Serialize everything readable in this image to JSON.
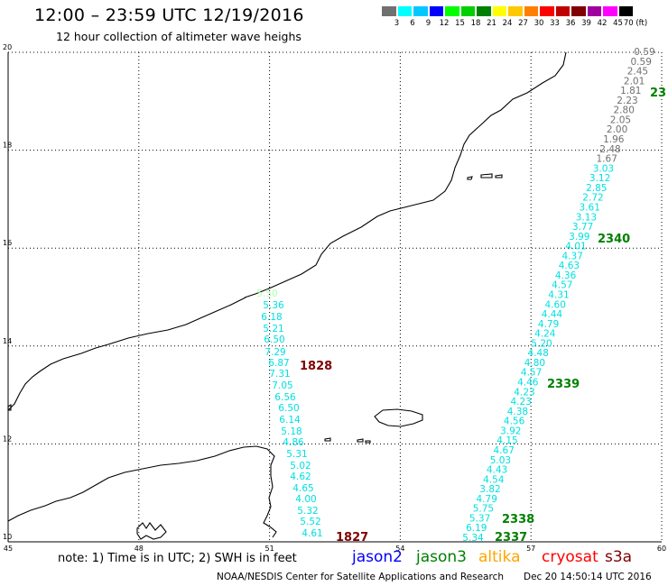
{
  "header": {
    "title": "12:00 – 23:59 UTC 12/19/2016",
    "subtitle": "12 hour collection of altimeter wave heighs"
  },
  "colorbar": {
    "cells": [
      "#707070",
      "#00ffff",
      "#00c8ff",
      "#0000ff",
      "#00ff00",
      "#00d000",
      "#008000",
      "#ffff00",
      "#ffc800",
      "#ff8000",
      "#ff0000",
      "#c00000",
      "#800000",
      "#a000a0",
      "#ff00ff",
      "#000000"
    ],
    "labels": [
      "3",
      "6",
      "9",
      "12",
      "15",
      "18",
      "21",
      "24",
      "27",
      "30",
      "33",
      "36",
      "39",
      "42",
      "45",
      "70 (ft)"
    ]
  },
  "axes": {
    "lon_labels": [
      "45",
      "48",
      "51",
      "54",
      "57",
      "60"
    ],
    "lat_labels": [
      "10",
      "12",
      "14",
      "16",
      "18",
      "20"
    ]
  },
  "tracks": {
    "west": {
      "values": [
        "5.50",
        "5.36",
        "6.18",
        "5.21",
        "6.50",
        "7.29",
        "6.87",
        "7.31",
        "7.05",
        "6.56",
        "6.50",
        "6.14",
        "5.18",
        "4.86",
        "5.31",
        "5.02",
        "4.62",
        "4.65",
        "4.00",
        "5.32",
        "5.52",
        "4.61"
      ],
      "first_value_color": "#b0ffb0",
      "value_color": "#00e0e0"
    },
    "east": {
      "values": [
        "0.59",
        "0.59",
        "2.45",
        "2.01",
        "1.81",
        "2.23",
        "2.80",
        "2.05",
        "2.00",
        "1.96",
        "2.48",
        "1.67",
        "3.03",
        "3.12",
        "2.85",
        "2.72",
        "3.61",
        "3.13",
        "3.77",
        "3.99",
        "4.01",
        "4.37",
        "4.63",
        "4.36",
        "4.57",
        "4.31",
        "4.60",
        "4.44",
        "4.79",
        "4.24",
        "5.20",
        "4.48",
        "4.80",
        "4.57",
        "4.46",
        "4.23",
        "4.23",
        "4.38",
        "4.56",
        "3.92",
        "4.15",
        "4.67",
        "5.03",
        "4.43",
        "4.54",
        "3.82",
        "4.79",
        "5.75",
        "5.37",
        "6.19",
        "5.34"
      ],
      "gray_count": 12,
      "gray_color": "#707070",
      "value_color": "#00e0e0"
    }
  },
  "pass_labels": {
    "west": [
      {
        "text": "1828",
        "color": "#800000"
      },
      {
        "text": "1827",
        "color": "#800000"
      }
    ],
    "east": [
      {
        "text": "23",
        "color": "#008000"
      },
      {
        "text": "2340",
        "color": "#008000"
      },
      {
        "text": "2339",
        "color": "#008000"
      },
      {
        "text": "2338",
        "color": "#008000"
      },
      {
        "text": "2337",
        "color": "#008000"
      }
    ]
  },
  "footer": {
    "note": "note: 1) Time is in UTC; 2) SWH is in feet",
    "satellites": [
      {
        "name": "jason2",
        "color": "#0000ff"
      },
      {
        "name": "jason3",
        "color": "#008000"
      },
      {
        "name": "altika",
        "color": "#ffa500"
      },
      {
        "name": "cryosat",
        "color": "#ff0000"
      },
      {
        "name": "s3a",
        "color": "#800000"
      }
    ],
    "credit": "NOAA/NESDIS Center for Satellite Applications and Research",
    "timestamp": "Dec 20 14:50:14 UTC 2016"
  }
}
